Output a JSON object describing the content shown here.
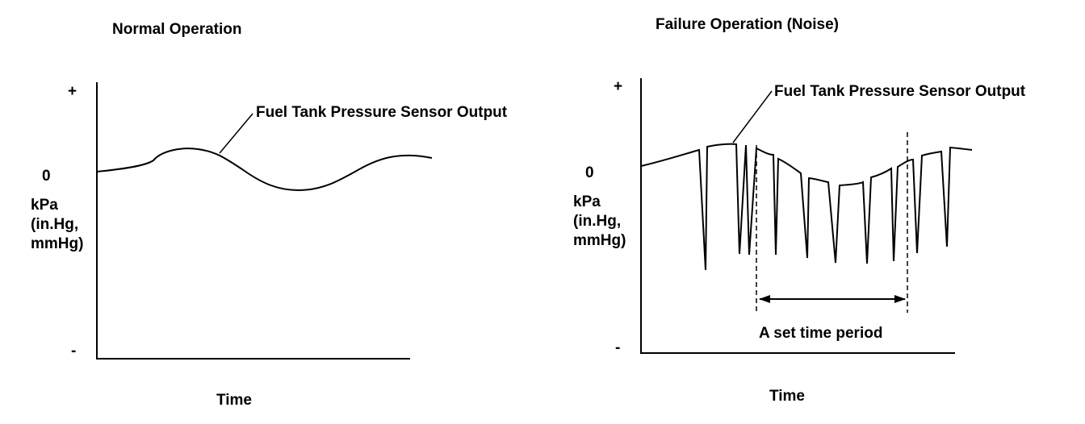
{
  "left_panel": {
    "title": "Normal Operation",
    "plus": "+",
    "zero": "0",
    "minus": "-",
    "unit_lines": [
      "kPa",
      "(in.Hg,",
      "mmHg)"
    ],
    "curve_label": "Fuel Tank Pressure Sensor Output",
    "xlabel": "Time"
  },
  "right_panel": {
    "title": "Failure Operation (Noise)",
    "plus": "+",
    "zero": "0",
    "minus": "-",
    "unit_lines": [
      "kPa",
      "(in.Hg,",
      "mmHg)"
    ],
    "curve_label": "Fuel Tank Pressure Sensor Output",
    "period_label": "A set time period",
    "xlabel": "Time"
  }
}
